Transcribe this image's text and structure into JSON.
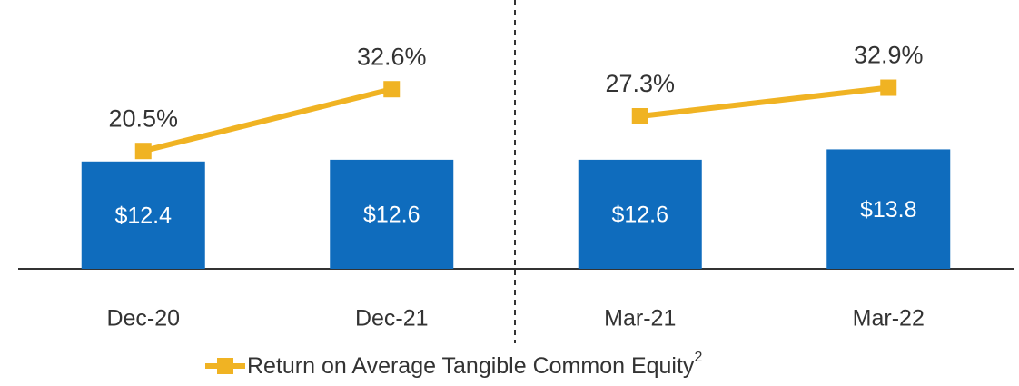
{
  "chart_data": {
    "type": "bar_line",
    "categories": [
      "Dec-20",
      "Dec-21",
      "Mar-21",
      "Mar-22"
    ],
    "series": [
      {
        "type": "bar",
        "color": "#0f6cbd",
        "values": [
          12.4,
          12.6,
          12.6,
          13.8
        ],
        "value_labels": [
          "$12.4",
          "$12.6",
          "$12.6",
          "$13.8"
        ]
      },
      {
        "type": "line",
        "axis": "y2",
        "name": "Return on Average Tangible Common Equity",
        "name_footnote": "2",
        "color": "#f0b323",
        "values": [
          20.5,
          32.6,
          27.3,
          32.9
        ],
        "value_labels": [
          "20.5%",
          "32.6%",
          "27.3%",
          "32.9%"
        ]
      }
    ],
    "ylim": [
      0,
      30
    ],
    "y2lim": [
      -2.6,
      48.3
    ]
  }
}
